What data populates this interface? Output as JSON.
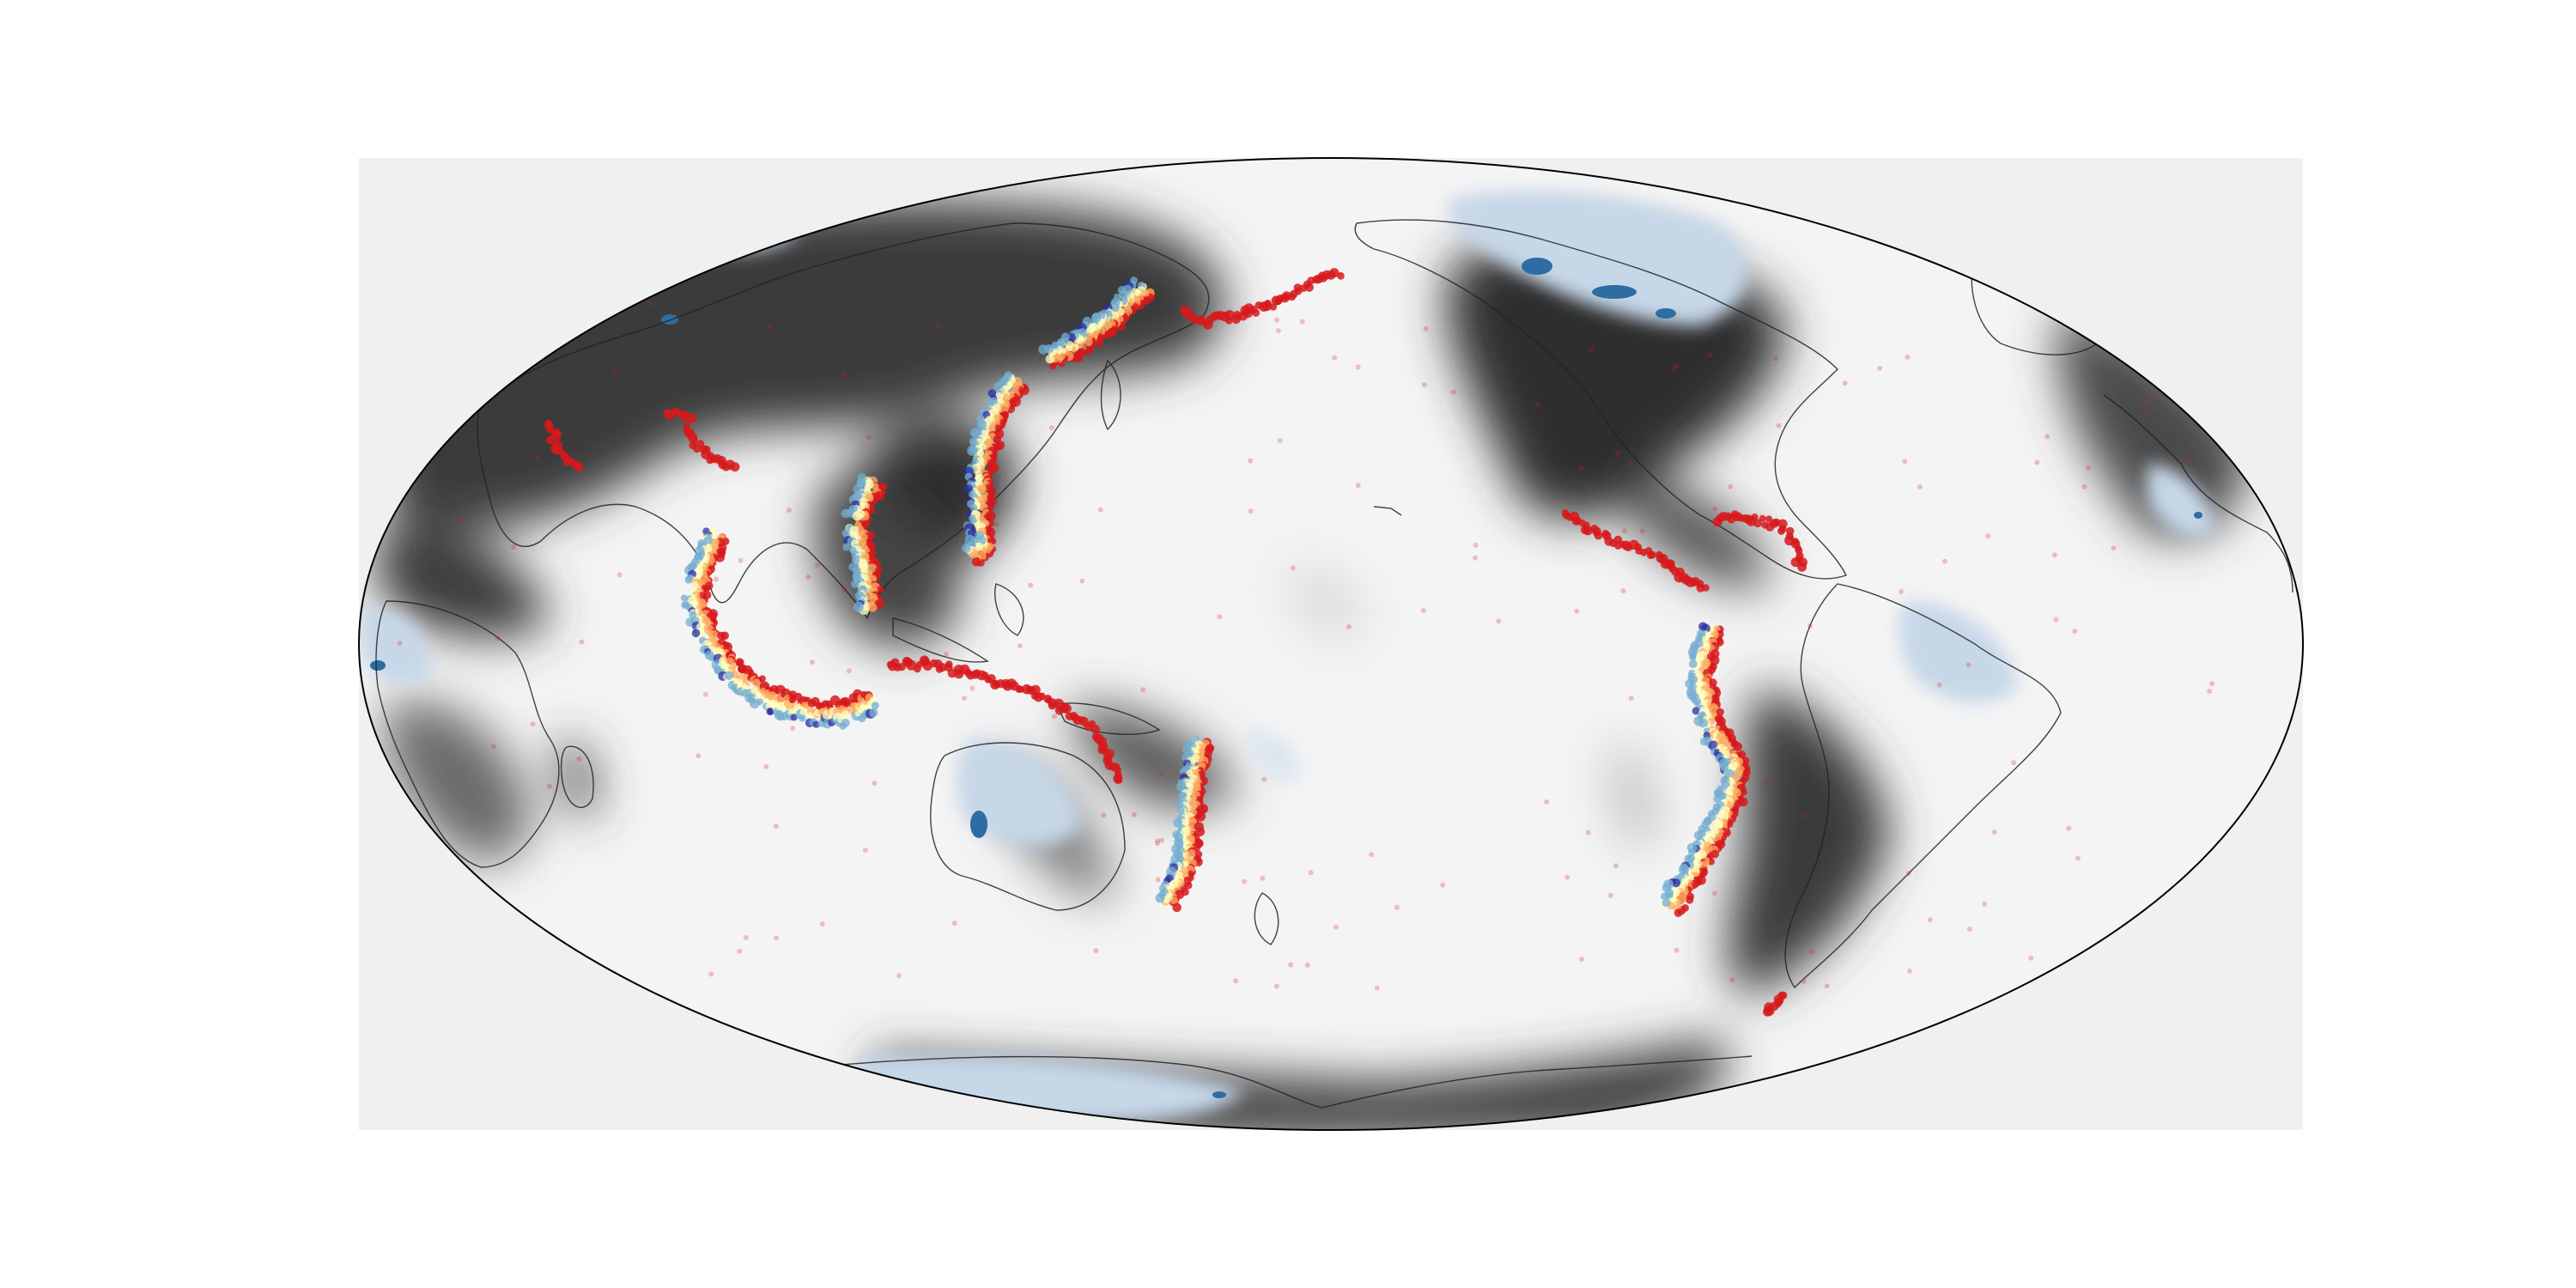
{
  "figure": {
    "background": "#ffffff",
    "axes_background": "#f0f0f0",
    "projection": "mollweide",
    "central_longitude": -150,
    "text_labels": []
  },
  "map_data": {
    "layers": [
      "grayscale-shaded-field",
      "light-blue-contour-regions",
      "dark-blue-contour-regions",
      "coastline-outlines",
      "earthquake-hypocenter-dots"
    ],
    "colors": {
      "shade_light": "#f2f2f2",
      "shade_mid": "#8c8c8c",
      "shade_dark": "#2b2b2b",
      "contour_light_blue": "#c6d7e8",
      "contour_dark_blue": "#2d6da3",
      "coastline": "#222222",
      "outline": "#000000",
      "quake_shallow": "#d7191c",
      "quake_intermediate": "#fdae61",
      "quake_mid": "#ffffbf",
      "quake_deep": "#74add1",
      "quake_deepest": "#2c2ca0"
    },
    "seismic_belts": [
      {
        "name": "aleutian-arc",
        "points": [
          [
            -148,
            60
          ],
          [
            -155,
            58
          ],
          [
            -165,
            54
          ],
          [
            -175,
            52
          ],
          [
            178,
            51
          ],
          [
            172,
            53
          ]
        ],
        "depth": "shallow"
      },
      {
        "name": "kamchatka-kuril",
        "points": [
          [
            162,
            56
          ],
          [
            159,
            52
          ],
          [
            153,
            46
          ],
          [
            147,
            43
          ]
        ],
        "depth": "mixed"
      },
      {
        "name": "japan-izu-mariana",
        "points": [
          [
            143,
            40
          ],
          [
            141,
            35
          ],
          [
            142,
            28
          ],
          [
            144,
            20
          ],
          [
            146,
            14
          ],
          [
            143,
            12
          ]
        ],
        "depth": "mixed"
      },
      {
        "name": "philippines-taiwan",
        "points": [
          [
            122,
            24
          ],
          [
            121,
            18
          ],
          [
            125,
            10
          ],
          [
            126,
            5
          ]
        ],
        "depth": "mixed"
      },
      {
        "name": "sunda-java-sumatra",
        "points": [
          [
            95,
            16
          ],
          [
            93,
            8
          ],
          [
            96,
            2
          ],
          [
            101,
            -4
          ],
          [
            106,
            -7
          ],
          [
            113,
            -9
          ],
          [
            120,
            -9
          ],
          [
            124,
            -7
          ]
        ],
        "depth": "mixed"
      },
      {
        "name": "new-guinea-solomon",
        "points": [
          [
            128,
            -3
          ],
          [
            135,
            -3
          ],
          [
            142,
            -4
          ],
          [
            148,
            -6
          ],
          [
            155,
            -7
          ],
          [
            160,
            -10
          ],
          [
            166,
            -13
          ]
        ],
        "depth": "shallow"
      },
      {
        "name": "vanuatu",
        "points": [
          [
            166,
            -14
          ],
          [
            168,
            -18
          ],
          [
            170,
            -21
          ]
        ],
        "depth": "shallow"
      },
      {
        "name": "tonga-kermadec",
        "points": [
          [
            -173,
            -15
          ],
          [
            -175,
            -21
          ],
          [
            -177,
            -28
          ],
          [
            -178,
            -34
          ],
          [
            178,
            -38
          ],
          [
            175,
            -41
          ]
        ],
        "depth": "deep"
      },
      {
        "name": "central-america",
        "points": [
          [
            -105,
            20
          ],
          [
            -100,
            17
          ],
          [
            -94,
            15
          ],
          [
            -88,
            13
          ],
          [
            -84,
            10
          ],
          [
            -80,
            8
          ]
        ],
        "depth": "shallow"
      },
      {
        "name": "caribbean",
        "points": [
          [
            -76,
            19
          ],
          [
            -70,
            19
          ],
          [
            -64,
            18
          ],
          [
            -62,
            15
          ],
          [
            -62,
            11
          ]
        ],
        "depth": "shallow"
      },
      {
        "name": "andes",
        "points": [
          [
            -78,
            2
          ],
          [
            -80,
            -4
          ],
          [
            -77,
            -12
          ],
          [
            -71,
            -18
          ],
          [
            -70,
            -24
          ],
          [
            -71,
            -30
          ],
          [
            -72,
            -36
          ],
          [
            -73,
            -42
          ]
        ],
        "depth": "mixed"
      },
      {
        "name": "scotia-arc",
        "points": [
          [
            -30,
            -56
          ],
          [
            -27,
            -58
          ],
          [
            -26,
            -60
          ]
        ],
        "depth": "shallow"
      },
      {
        "name": "himalaya-hindukush",
        "points": [
          [
            70,
            36
          ],
          [
            75,
            35
          ],
          [
            80,
            31
          ],
          [
            86,
            28
          ],
          [
            92,
            27
          ]
        ],
        "depth": "shallow"
      },
      {
        "name": "iran-zagros",
        "points": [
          [
            48,
            34
          ],
          [
            53,
            30
          ],
          [
            57,
            28
          ],
          [
            61,
            27
          ]
        ],
        "depth": "shallow"
      }
    ]
  }
}
